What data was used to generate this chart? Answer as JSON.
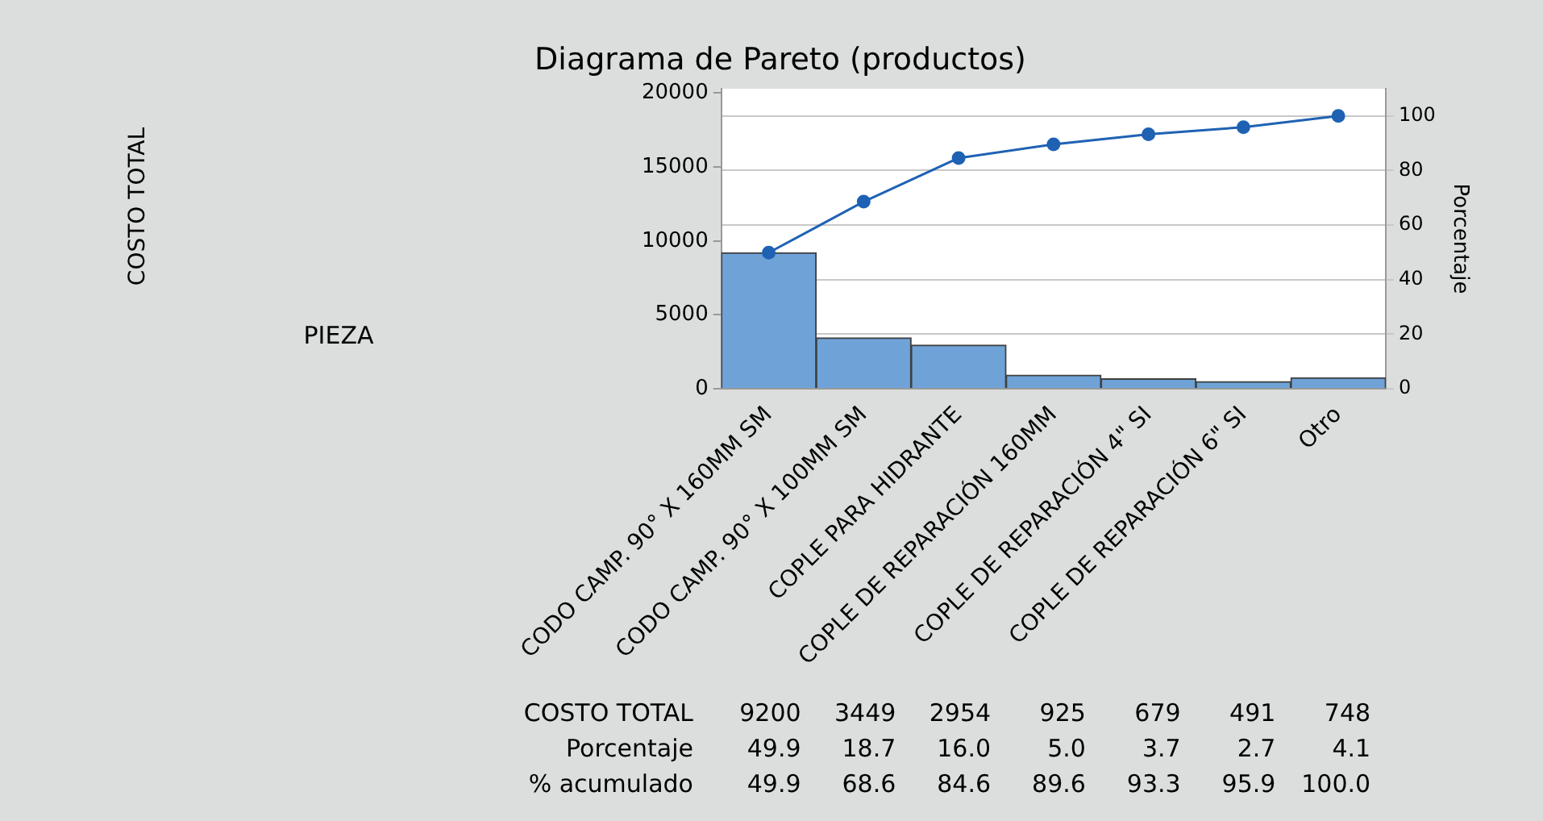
{
  "chart_data": {
    "type": "bar",
    "title": "Diagrama de Pareto (productos)",
    "y2label": "Porcentaje",
    "categories": [
      "CODO CAMP. 90° X 160MM SM",
      "CODO CAMP. 90° X 100MM SM",
      "COPLE PARA HIDRANTE",
      "COPLE DE REPARACIÓN 160MM",
      "COPLE DE REPARACIÓN 4\" SI",
      "COPLE DE REPARACIÓN 6\" SI",
      "Otro"
    ],
    "series": [
      {
        "color": "#6fa3d8",
        "values": [
          9200,
          3449,
          2954,
          925,
          679,
          491,
          748
        ]
      },
      {
        "type": "line",
        "axis": "y2",
        "color": "#1f62b4",
        "values": [
          49.9,
          68.6,
          84.6,
          89.6,
          93.3,
          95.9,
          100.0
        ],
        "value_labels": [
          "49.9",
          "68.6",
          "84.6",
          "89.6",
          "93.3",
          "95.9",
          "100.0"
        ]
      }
    ],
    "ylim": [
      0,
      20300
    ],
    "yticks": [
      0,
      5000,
      10000,
      15000,
      20000
    ],
    "y2lim": [
      0,
      110
    ],
    "y2ticks": [
      0,
      20,
      40,
      60,
      80,
      100
    ],
    "grid": "y2",
    "legend": false,
    "marker": "circle",
    "line_style": "solid",
    "data_labels": true,
    "annotations": [
      "COSTO TOTAL",
      "PIEZA",
      "COSTO TOTAL",
      "Porcentaje",
      "% acumulado",
      "49.9",
      "18.7",
      "16.0",
      "5.0",
      "3.7",
      "2.7",
      "4.1"
    ]
  }
}
